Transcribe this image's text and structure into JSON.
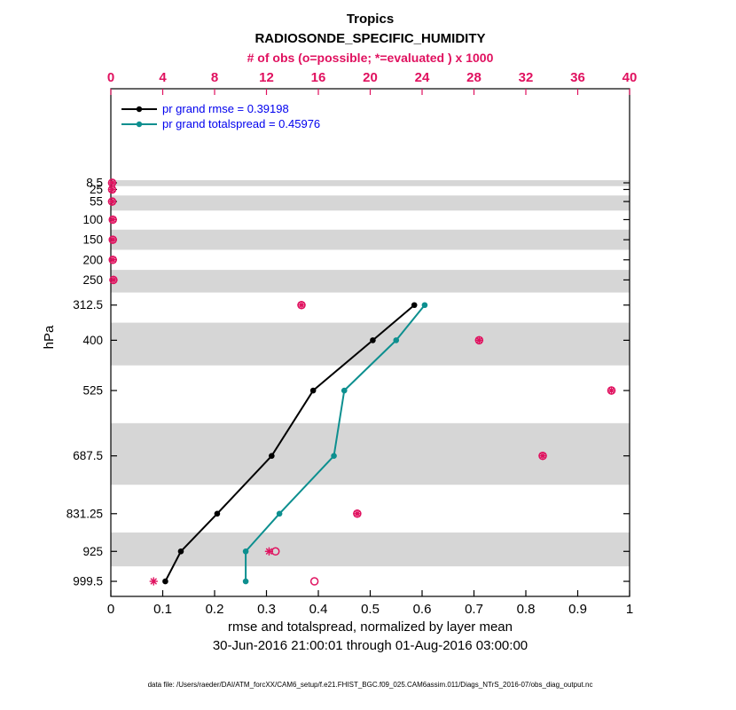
{
  "chart_data": {
    "type": "line",
    "title": "Tropics",
    "subtitle": "RADIOSONDE_SPECIFIC_HUMIDITY",
    "top_axis_label": "# of obs (o=possible; *=evaluated ) x 1000",
    "xlabel": "rmse and totalspread, normalized by layer mean",
    "date_range": "30-Jun-2016 21:00:01 through 01-Aug-2016 03:00:00",
    "data_file": "data file: /Users/raeder/DAI/ATM_forcXX/CAM6_setup/f.e21.FHIST_BGC.f09_025.CAM6assim.011/Diags_NTrS_2016-07/obs_diag_output.nc",
    "ylabel": "hPa",
    "colors": {
      "obs": "#e0115f",
      "rmse": "#000000",
      "totalspread": "#0d8f8f",
      "band": "#d6d6d6",
      "legend_text": "#0000ee",
      "axis": "#000000"
    },
    "x_bottom": {
      "min": 0,
      "max": 1,
      "ticks": [
        0,
        0.1,
        0.2,
        0.3,
        0.4,
        0.5,
        0.6,
        0.7,
        0.8,
        0.9,
        1
      ]
    },
    "x_top": {
      "min": 0,
      "max": 40,
      "ticks": [
        0,
        4,
        8,
        12,
        16,
        20,
        24,
        28,
        32,
        36,
        40
      ]
    },
    "y_axis": {
      "label": "hPa",
      "levels": [
        8.5,
        25,
        55,
        100,
        150,
        200,
        250,
        312.5,
        400,
        525,
        687.5,
        831.25,
        925,
        999.5
      ]
    },
    "shaded_layers": [
      [
        2,
        16.75
      ],
      [
        40,
        77.5
      ],
      [
        125,
        175
      ],
      [
        225,
        281.25
      ],
      [
        356.25,
        462.5
      ],
      [
        606.25,
        759.375
      ],
      [
        878.125,
        962.25
      ]
    ],
    "series": [
      {
        "name": "pr grand rmse = 0.39198",
        "color_key": "rmse",
        "points": [
          [
            312.5,
            0.585
          ],
          [
            400,
            0.505
          ],
          [
            525,
            0.39
          ],
          [
            687.5,
            0.31
          ],
          [
            831.25,
            0.205
          ],
          [
            925,
            0.135
          ],
          [
            999.5,
            0.105
          ]
        ]
      },
      {
        "name": "pr grand totalspread = 0.45976",
        "color_key": "totalspread",
        "points": [
          [
            312.5,
            0.605
          ],
          [
            400,
            0.55
          ],
          [
            525,
            0.45
          ],
          [
            687.5,
            0.43
          ],
          [
            831.25,
            0.325
          ],
          [
            925,
            0.26
          ],
          [
            999.5,
            0.26
          ]
        ]
      }
    ],
    "obs_counts_x1000": {
      "possible": [
        [
          8.5,
          0.1
        ],
        [
          25,
          0.1
        ],
        [
          55,
          0.1
        ],
        [
          100,
          0.15
        ],
        [
          150,
          0.15
        ],
        [
          200,
          0.15
        ],
        [
          250,
          0.2
        ],
        [
          312.5,
          14.7
        ],
        [
          400,
          28.4
        ],
        [
          525,
          38.6
        ],
        [
          687.5,
          33.3
        ],
        [
          831.25,
          19.0
        ],
        [
          925,
          12.7
        ],
        [
          999.5,
          15.7
        ]
      ],
      "evaluated": [
        [
          8.5,
          0.1
        ],
        [
          25,
          0.1
        ],
        [
          55,
          0.1
        ],
        [
          100,
          0.15
        ],
        [
          150,
          0.15
        ],
        [
          200,
          0.15
        ],
        [
          250,
          0.2
        ],
        [
          312.5,
          14.7
        ],
        [
          400,
          28.4
        ],
        [
          525,
          38.6
        ],
        [
          687.5,
          33.3
        ],
        [
          831.25,
          19.0
        ],
        [
          925,
          12.2
        ],
        [
          999.5,
          3.3
        ]
      ]
    }
  }
}
